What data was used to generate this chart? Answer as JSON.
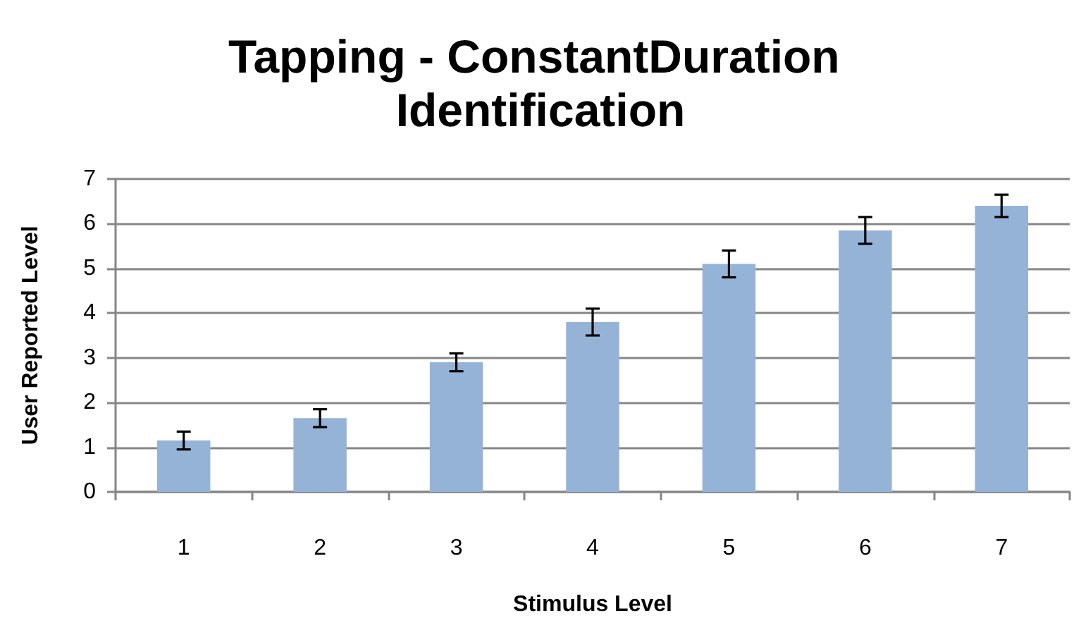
{
  "chart_data": {
    "type": "bar",
    "title": "Tapping - ConstantDuration Identification",
    "xlabel": "Stimulus Level",
    "ylabel": "User Reported Level",
    "categories": [
      "1",
      "2",
      "3",
      "4",
      "5",
      "6",
      "7"
    ],
    "values": [
      1.15,
      1.65,
      2.9,
      3.8,
      5.1,
      5.85,
      6.4
    ],
    "errors": [
      0.2,
      0.2,
      0.2,
      0.3,
      0.3,
      0.3,
      0.25
    ],
    "color": "#95b3d7",
    "ylim": [
      0,
      7
    ],
    "yticks": [
      0,
      1,
      2,
      3,
      4,
      5,
      6,
      7
    ],
    "grid": "y"
  }
}
